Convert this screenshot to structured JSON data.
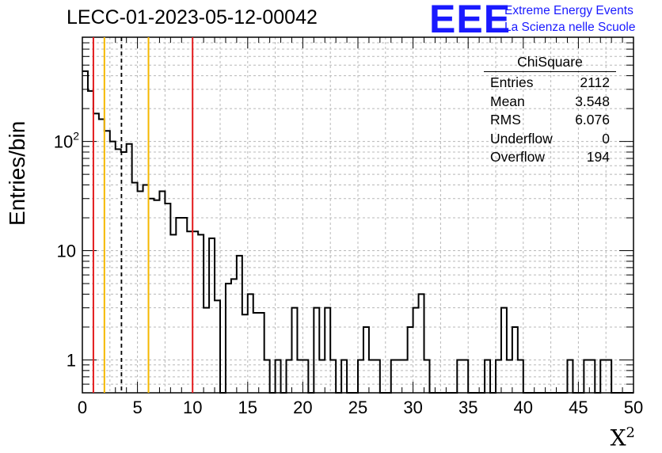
{
  "header": {
    "title": "LECC-01-2023-05-12-00042",
    "logo_text": "EEE",
    "org_line1": "Extreme Energy Events",
    "org_line2": "La Scienza nelle Scuole"
  },
  "stats_box": {
    "title": "ChiSquare",
    "rows": [
      {
        "label": "Entries",
        "value": "2112"
      },
      {
        "label": "Mean",
        "value": "3.548"
      },
      {
        "label": "RMS",
        "value": "6.076"
      },
      {
        "label": "Underflow",
        "value": "0"
      },
      {
        "label": "Overflow",
        "value": "194"
      }
    ]
  },
  "colors": {
    "red_line": "#e31a1c",
    "yellow_line": "#f5b800",
    "hist": "#000000",
    "logo": "#1a1aff"
  },
  "chart_data": {
    "type": "histogram",
    "title": "LECC-01-2023-05-12-00042",
    "xlabel": "X²",
    "ylabel": "Entries/bin",
    "x_log": false,
    "y_log": true,
    "grid": true,
    "xlim": [
      0,
      50
    ],
    "ylim": [
      0.5,
      900
    ],
    "xticks": [
      0,
      5,
      10,
      15,
      20,
      25,
      30,
      35,
      40,
      45,
      50
    ],
    "yticks": [
      {
        "value": 1,
        "label": "1"
      },
      {
        "value": 10,
        "label": "10"
      },
      {
        "value": 100,
        "label": "10²"
      }
    ],
    "bin_width": 0.5,
    "bin_start": 0,
    "values": [
      440,
      290,
      180,
      160,
      125,
      100,
      85,
      80,
      95,
      42,
      35,
      40,
      30,
      29,
      35,
      27,
      14,
      20,
      20,
      15,
      15,
      14,
      3,
      13,
      3.5,
      0,
      5,
      5.5,
      9,
      2.6,
      4,
      2.7,
      2.7,
      1,
      0,
      1,
      0,
      1,
      3,
      1,
      1,
      0,
      3,
      1,
      3,
      1,
      0,
      1,
      0,
      0,
      1,
      2,
      1,
      1,
      0,
      0,
      1,
      1,
      1,
      2,
      3,
      4,
      1,
      0,
      0,
      0,
      0,
      0,
      1,
      1,
      0,
      0,
      0,
      1,
      0,
      1,
      3,
      1,
      2,
      1,
      0,
      0,
      0,
      0,
      0,
      0,
      0,
      0,
      1,
      0,
      0,
      1,
      1,
      0,
      1,
      1,
      0,
      0,
      0,
      0
    ],
    "vertical_lines": [
      {
        "x": 1,
        "color": "red",
        "style": "solid"
      },
      {
        "x": 2,
        "color": "yellow",
        "style": "solid"
      },
      {
        "x": 3.548,
        "color": "black",
        "style": "dashed"
      },
      {
        "x": 6,
        "color": "yellow",
        "style": "solid"
      },
      {
        "x": 10,
        "color": "red",
        "style": "solid"
      }
    ]
  }
}
